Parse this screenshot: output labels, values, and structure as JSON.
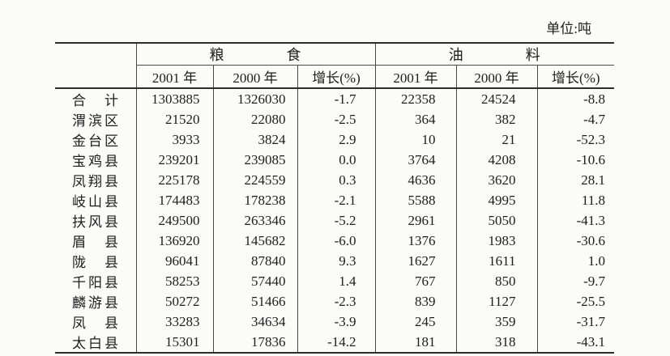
{
  "page": {
    "unit_label": "单位:吨"
  },
  "table": {
    "group_headers": [
      {
        "label": "粮　　　　食"
      },
      {
        "label": "油　　　　料"
      }
    ],
    "column_headers": [
      "2001 年",
      "2000 年",
      "增长(%)",
      "2001 年",
      "2000 年",
      "增长(%)"
    ],
    "rows": [
      {
        "cells": [
          "合　计",
          "1303885",
          "1326030",
          "-1.7",
          "22358",
          "24524",
          "-8.8"
        ]
      },
      {
        "cells": [
          "渭滨区",
          "21520",
          "22080",
          "-2.5",
          "364",
          "382",
          "-4.7"
        ]
      },
      {
        "cells": [
          "金台区",
          "3933",
          "3824",
          "2.9",
          "10",
          "21",
          "-52.3"
        ]
      },
      {
        "cells": [
          "宝鸡县",
          "239201",
          "239085",
          "0.0",
          "3764",
          "4208",
          "-10.6"
        ]
      },
      {
        "cells": [
          "凤翔县",
          "225178",
          "224559",
          "0.3",
          "4636",
          "3620",
          "28.1"
        ]
      },
      {
        "cells": [
          "岐山县",
          "174483",
          "178238",
          "-2.1",
          "5588",
          "4995",
          "11.8"
        ]
      },
      {
        "cells": [
          "扶风县",
          "249500",
          "263346",
          "-5.2",
          "2961",
          "5050",
          "-41.3"
        ]
      },
      {
        "cells": [
          "眉　县",
          "136920",
          "145682",
          "-6.0",
          "1376",
          "1983",
          "-30.6"
        ]
      },
      {
        "cells": [
          "陇　县",
          "96041",
          "87840",
          "9.3",
          "1627",
          "1611",
          "1.0"
        ]
      },
      {
        "cells": [
          "千阳县",
          "58253",
          "57440",
          "1.4",
          "767",
          "850",
          "-9.7"
        ]
      },
      {
        "cells": [
          "麟游县",
          "50272",
          "51466",
          "-2.3",
          "839",
          "1127",
          "-25.5"
        ]
      },
      {
        "cells": [
          "凤　县",
          "33283",
          "34634",
          "-3.9",
          "245",
          "359",
          "-31.7"
        ]
      },
      {
        "cells": [
          "太白县",
          "15301",
          "17836",
          "-14.2",
          "181",
          "318",
          "-43.1"
        ]
      }
    ]
  }
}
